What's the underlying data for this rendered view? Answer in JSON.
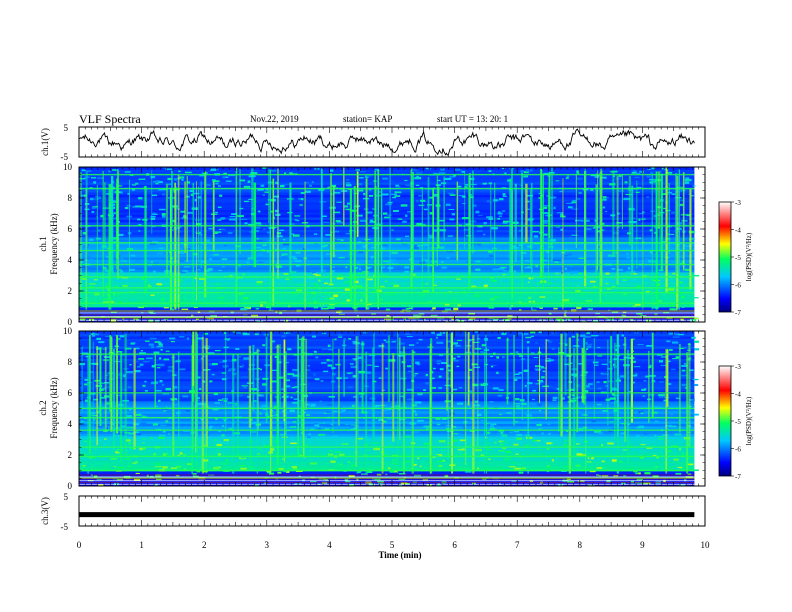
{
  "header": {
    "title": "VLF Spectra",
    "date": "Nov.22, 2019",
    "station": "station= KAP",
    "start": "start  UT =   13: 20: 1"
  },
  "chart_data": [
    {
      "type": "line",
      "name": "waveform-ch1",
      "ylabel": "ch.1(V)",
      "ylim": [
        -5,
        5
      ],
      "yticks": [
        "5",
        "-5"
      ],
      "xlim": [
        0,
        10
      ]
    },
    {
      "type": "heatmap",
      "name": "spectrogram-ch1",
      "ylabel_lines": [
        "ch.1",
        "Frequency (kHz)"
      ],
      "ylim": [
        0,
        10
      ],
      "yticks": [
        0,
        2,
        4,
        6,
        8,
        10
      ],
      "x_end": 9.83,
      "colorbar": {
        "label": "log(PSD)(V²/Hz)",
        "range": [
          -7,
          -3
        ],
        "ticks": [
          "-3",
          "-4",
          "-5",
          "-6",
          "-7"
        ]
      },
      "bands_khz": [
        0.3,
        0.7,
        1.2,
        1.9,
        2.2,
        2.9,
        3.7,
        4.6,
        5.1,
        6.2,
        8.6,
        9.5
      ]
    },
    {
      "type": "heatmap",
      "name": "spectrogram-ch2",
      "ylabel_lines": [
        "ch.2",
        "Frequency (kHz)"
      ],
      "ylim": [
        0,
        10
      ],
      "yticks": [
        0,
        2,
        4,
        6,
        8,
        10
      ],
      "x_end": 9.83,
      "colorbar": {
        "label": "log(PSD)(V²/Hz)",
        "range": [
          -7,
          -3
        ],
        "ticks": [
          "-3",
          "-4",
          "-5",
          "-6",
          "-7"
        ]
      },
      "bands_khz": [
        0.5,
        1.0,
        1.9,
        2.5,
        3.6,
        4.4,
        5.0,
        6.0,
        8.5
      ]
    },
    {
      "type": "line",
      "name": "waveform-ch3",
      "ylabel": "ch.3(V)",
      "ylim": [
        -5,
        5
      ],
      "yticks": [
        "5",
        "-5"
      ],
      "level": -1.2
    }
  ],
  "xaxis": {
    "label": "Time (min)",
    "ticks": [
      "0",
      "1",
      "2",
      "3",
      "4",
      "5",
      "6",
      "7",
      "8",
      "9",
      "10"
    ],
    "range": [
      0,
      10
    ]
  }
}
